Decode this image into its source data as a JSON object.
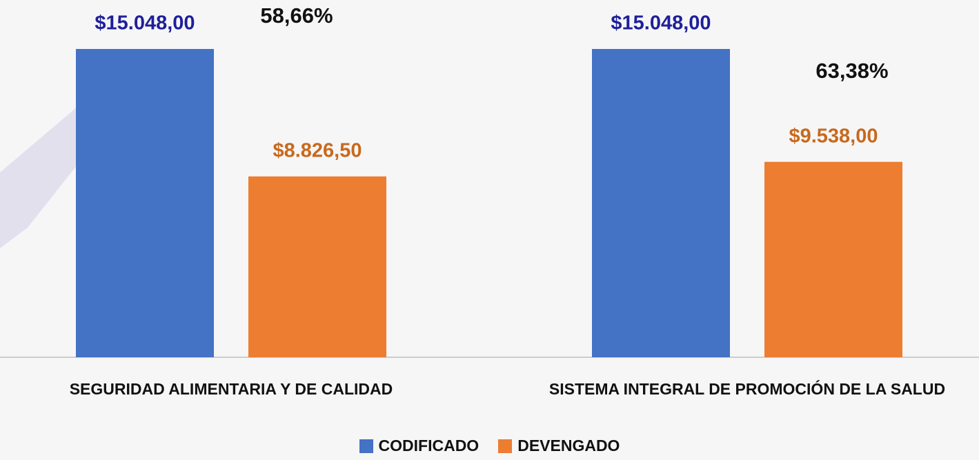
{
  "chart_data": {
    "type": "bar",
    "categories": [
      "SEGURIDAD ALIMENTARIA Y DE CALIDAD",
      "SISTEMA INTEGRAL DE PROMOCIÓN DE LA SALUD"
    ],
    "series": [
      {
        "name": "CODIFICADO",
        "color": "#4472c4",
        "label_color": "#1f1f9a",
        "values": [
          15048,
          15048
        ],
        "value_labels": [
          "$15.048,00",
          "$15.048,00"
        ]
      },
      {
        "name": "DEVENGADO",
        "color": "#ed7d31",
        "label_color": "#c8691c",
        "values": [
          8826.5,
          9538
        ],
        "value_labels": [
          "$8.826,50",
          "$9.538,00"
        ]
      }
    ],
    "annotations": [
      "58,66%",
      "63,38%"
    ],
    "legend": "bottom"
  }
}
